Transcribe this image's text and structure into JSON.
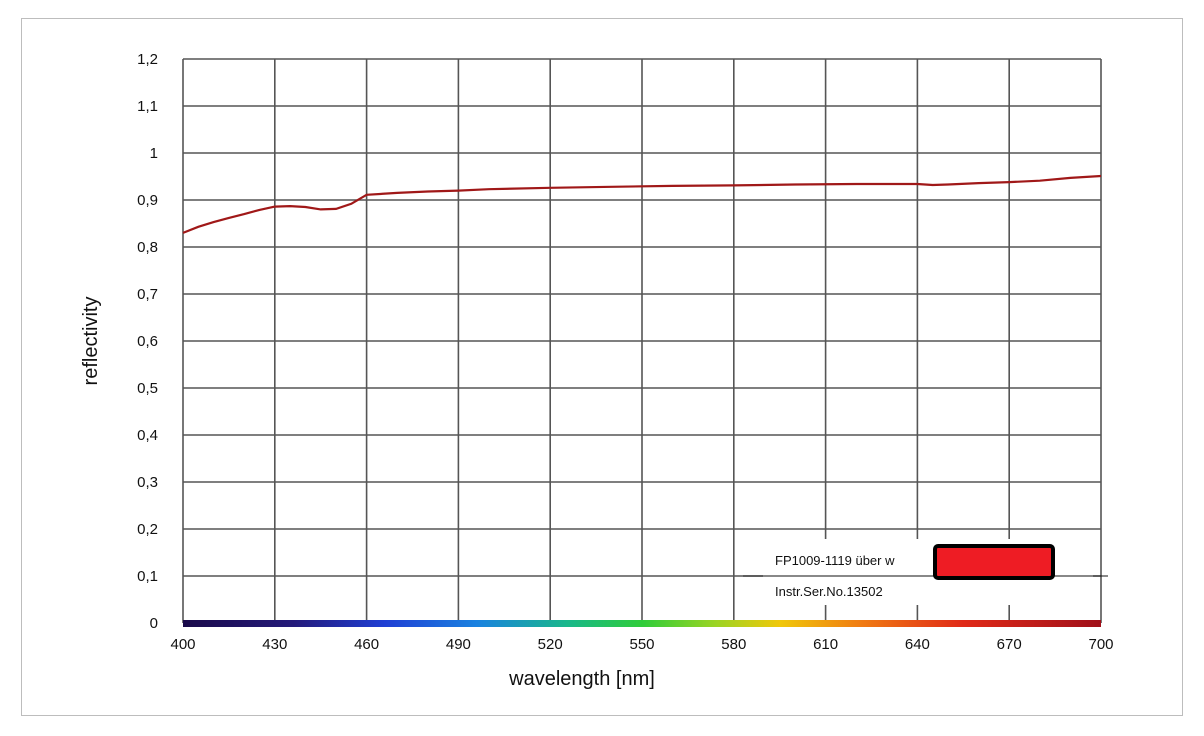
{
  "chart_data": {
    "type": "line",
    "xlabel": "wavelength [nm]",
    "ylabel": "reflectivity",
    "xlim": [
      400,
      700
    ],
    "ylim": [
      0,
      1.2
    ],
    "x_ticks": [
      "400",
      "430",
      "460",
      "490",
      "520",
      "550",
      "580",
      "610",
      "640",
      "670",
      "700"
    ],
    "y_ticks": [
      "0",
      "0,1",
      "0,2",
      "0,3",
      "0,4",
      "0,5",
      "0,6",
      "0,7",
      "0,8",
      "0,9",
      "1",
      "1,1",
      "1,2"
    ],
    "grid": true,
    "spectrum_bar": true,
    "series": [
      {
        "color": "#a01818",
        "x": [
          400,
          405,
          410,
          415,
          420,
          425,
          430,
          435,
          440,
          445,
          450,
          455,
          460,
          470,
          480,
          490,
          500,
          520,
          540,
          560,
          580,
          600,
          620,
          640,
          645,
          650,
          660,
          670,
          680,
          690,
          700
        ],
        "y": [
          0.83,
          0.843,
          0.853,
          0.862,
          0.87,
          0.879,
          0.886,
          0.887,
          0.885,
          0.88,
          0.881,
          0.892,
          0.911,
          0.915,
          0.918,
          0.92,
          0.923,
          0.926,
          0.928,
          0.93,
          0.931,
          0.933,
          0.934,
          0.934,
          0.932,
          0.933,
          0.936,
          0.938,
          0.941,
          0.947,
          0.951
        ]
      }
    ],
    "legend": {
      "placement": "bottom-right",
      "line1": "FP1009-1119 über w",
      "line2": "Instr.Ser.No.13502",
      "swatch_color": "#ee1c24"
    }
  }
}
